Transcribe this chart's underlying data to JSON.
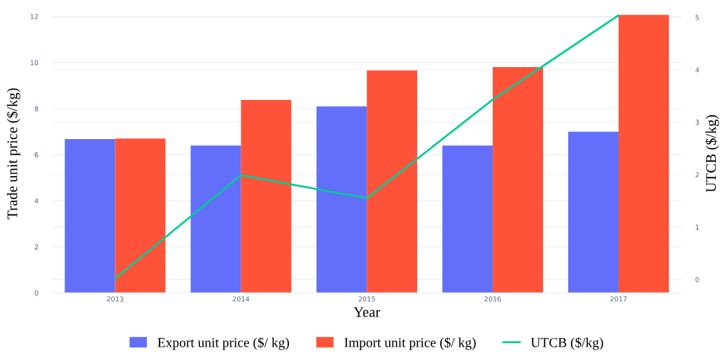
{
  "chart_data": {
    "type": "bar",
    "xlabel": "Year",
    "ylabel": "Trade unit price ($/kg)",
    "y2label": "UTCB ($/kg)",
    "categories": [
      "2013",
      "2014",
      "2015",
      "2016",
      "2017"
    ],
    "series": [
      {
        "name": "Export unit price ($/ kg)",
        "color": "#636efa",
        "values": [
          6.68,
          6.4,
          8.1,
          6.4,
          7.0
        ]
      },
      {
        "name": "Import unit price ($/ kg)",
        "color": "#fe5339",
        "values": [
          6.7,
          8.38,
          9.66,
          9.8,
          12.07
        ]
      },
      {
        "name": "UTCB ($/kg)",
        "type": "line",
        "axis": "y2",
        "color": "#00cc96",
        "values": [
          0.02,
          1.99,
          1.55,
          3.43,
          5.04
        ]
      }
    ],
    "ylim": [
      0,
      12.1
    ],
    "yticks": [
      0,
      2,
      4,
      6,
      8,
      10,
      12
    ],
    "y2lim": [
      -0.255,
      5.06
    ],
    "y2ticks": [
      0,
      1,
      2,
      3,
      4,
      5
    ],
    "grid": "y",
    "legend": "bottom",
    "marker": "none",
    "line_style": "solid"
  }
}
